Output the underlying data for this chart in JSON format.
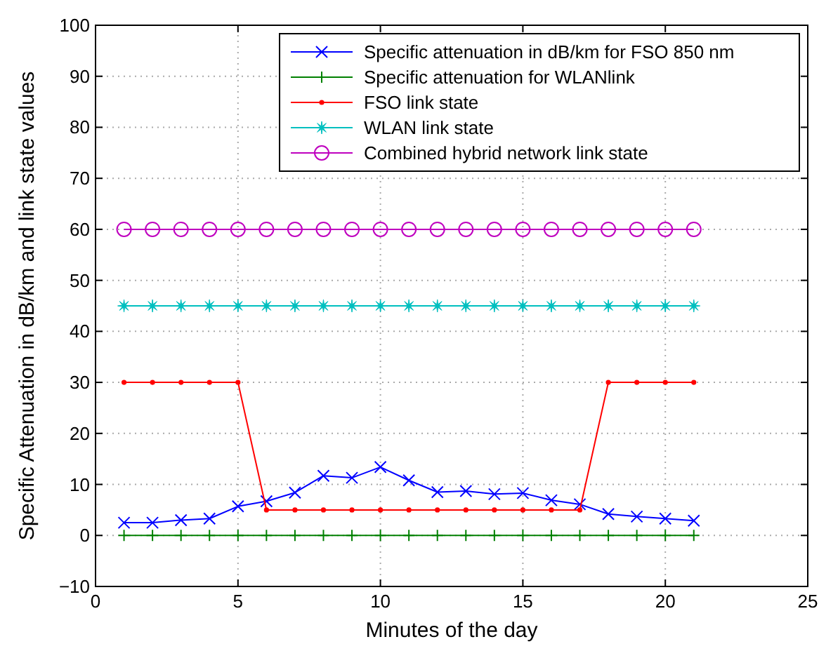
{
  "chart_data": {
    "type": "line",
    "xlabel": "Minutes of the day",
    "ylabel": "Specific Attenuation in dB/km and link state values",
    "x": [
      1,
      2,
      3,
      4,
      5,
      6,
      7,
      8,
      9,
      10,
      11,
      12,
      13,
      14,
      15,
      16,
      17,
      18,
      19,
      20,
      21
    ],
    "series": [
      {
        "name": "Specific attenuation in dB/km for FSO 850 nm",
        "color": "#0000ff",
        "marker": "cross",
        "values": [
          2.5,
          2.5,
          3.0,
          3.3,
          5.7,
          6.7,
          8.4,
          11.7,
          11.3,
          13.4,
          10.8,
          8.5,
          8.7,
          8.1,
          8.3,
          6.9,
          6.1,
          4.2,
          3.7,
          3.3,
          2.9
        ]
      },
      {
        "name": "Specific attenuation for WLANlink",
        "color": "#008000",
        "marker": "plus",
        "values": [
          0,
          0,
          0,
          0,
          0,
          0,
          0,
          0,
          0,
          0,
          0,
          0,
          0,
          0,
          0,
          0,
          0,
          0,
          0,
          0,
          0
        ]
      },
      {
        "name": "FSO link state",
        "color": "#ff0000",
        "marker": "point",
        "values": [
          30,
          30,
          30,
          30,
          30,
          5,
          5,
          5,
          5,
          5,
          5,
          5,
          5,
          5,
          5,
          5,
          5,
          30,
          30,
          30,
          30
        ]
      },
      {
        "name": "WLAN link state",
        "color": "#00bfbf",
        "marker": "star",
        "values": [
          45,
          45,
          45,
          45,
          45,
          45,
          45,
          45,
          45,
          45,
          45,
          45,
          45,
          45,
          45,
          45,
          45,
          45,
          45,
          45,
          45
        ]
      },
      {
        "name": "Combined hybrid network link state",
        "color": "#bf00bf",
        "marker": "circle",
        "values": [
          60,
          60,
          60,
          60,
          60,
          60,
          60,
          60,
          60,
          60,
          60,
          60,
          60,
          60,
          60,
          60,
          60,
          60,
          60,
          60,
          60
        ]
      }
    ],
    "xlim": [
      0,
      25
    ],
    "xticks": [
      0,
      5,
      10,
      15,
      20,
      25
    ],
    "ylim": [
      -10,
      100
    ],
    "yticks": [
      -10,
      0,
      10,
      20,
      30,
      40,
      50,
      60,
      70,
      80,
      90,
      100
    ],
    "grid": true,
    "legend": "top right"
  }
}
